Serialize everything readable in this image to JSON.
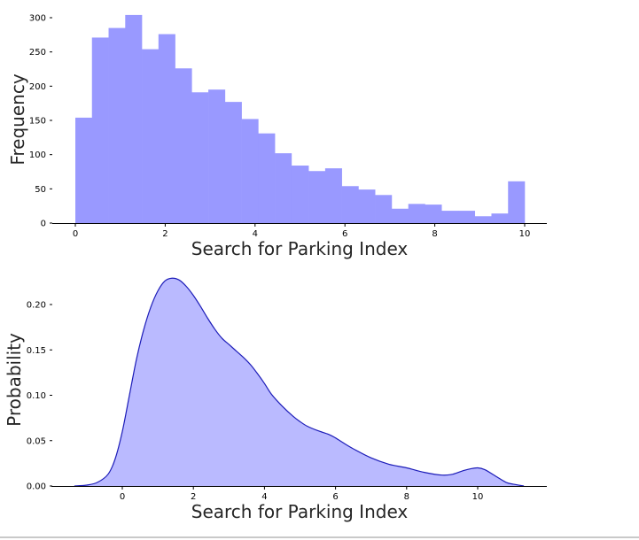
{
  "colors": {
    "hist_fill": "#9999ff",
    "kde_fill": "#babaff",
    "kde_line": "#1c1cb8",
    "axis": "#000000",
    "text": "#262626"
  },
  "chart_data": [
    {
      "type": "bar",
      "subtype": "histogram",
      "xlabel": "Search for Parking Index",
      "ylabel": "Frequency",
      "xlim": [
        -0.5,
        10.5
      ],
      "ylim": [
        0,
        305
      ],
      "xticks": [
        0,
        2,
        4,
        6,
        8,
        10
      ],
      "xtick_labels": [
        "0",
        "2",
        "4",
        "6",
        "8",
        "10"
      ],
      "yticks": [
        0,
        50,
        100,
        150,
        200,
        250,
        300
      ],
      "ytick_labels": [
        "0",
        "50",
        "100",
        "150",
        "200",
        "250",
        "300"
      ],
      "bin_edges": [
        0,
        0.37,
        0.74,
        1.11,
        1.48,
        1.85,
        2.22,
        2.59,
        2.96,
        3.33,
        3.7,
        4.07,
        4.44,
        4.81,
        5.19,
        5.56,
        5.93,
        6.3,
        6.67,
        7.04,
        7.41,
        7.78,
        8.15,
        8.52,
        8.89,
        9.26,
        9.63,
        10.0
      ],
      "values": [
        154,
        271,
        285,
        304,
        254,
        276,
        226,
        191,
        195,
        177,
        152,
        131,
        102,
        84,
        76,
        80,
        54,
        49,
        41,
        21,
        28,
        27,
        18,
        18,
        10,
        14,
        61
      ],
      "grid": false,
      "spines": "left-bottom-hidden"
    },
    {
      "type": "area",
      "subtype": "kde",
      "xlabel": "Search for Parking Index",
      "ylabel": "Probability",
      "xlim": [
        -2.0,
        12.0
      ],
      "ylim": [
        0,
        0.23
      ],
      "xticks": [
        0,
        2,
        4,
        6,
        8,
        10
      ],
      "xtick_labels": [
        "0",
        "2",
        "4",
        "6",
        "8",
        "10"
      ],
      "yticks": [
        0.0,
        0.05,
        0.1,
        0.15,
        0.2
      ],
      "ytick_labels": [
        "0.00",
        "0.05",
        "0.10",
        "0.15",
        "0.20"
      ],
      "x": [
        -1.35,
        -1.0,
        -0.7,
        -0.4,
        -0.2,
        0.0,
        0.2,
        0.4,
        0.6,
        0.8,
        1.0,
        1.2,
        1.4,
        1.6,
        1.8,
        2.0,
        2.2,
        2.4,
        2.6,
        2.8,
        3.0,
        3.2,
        3.4,
        3.6,
        3.8,
        4.0,
        4.2,
        4.5,
        4.8,
        5.0,
        5.2,
        5.5,
        5.8,
        6.0,
        6.2,
        6.5,
        7.0,
        7.5,
        8.0,
        8.5,
        9.0,
        9.3,
        9.6,
        9.8,
        10.0,
        10.2,
        10.5,
        10.8,
        11.0,
        11.3
      ],
      "y": [
        0.0,
        0.001,
        0.004,
        0.013,
        0.03,
        0.06,
        0.1,
        0.14,
        0.172,
        0.197,
        0.215,
        0.226,
        0.229,
        0.227,
        0.22,
        0.21,
        0.198,
        0.185,
        0.173,
        0.163,
        0.156,
        0.149,
        0.142,
        0.134,
        0.124,
        0.113,
        0.101,
        0.088,
        0.077,
        0.071,
        0.066,
        0.061,
        0.057,
        0.053,
        0.048,
        0.041,
        0.031,
        0.024,
        0.02,
        0.015,
        0.012,
        0.013,
        0.017,
        0.019,
        0.02,
        0.018,
        0.011,
        0.004,
        0.002,
        0.0
      ],
      "grid": false,
      "spines": "left-bottom-hidden"
    }
  ]
}
